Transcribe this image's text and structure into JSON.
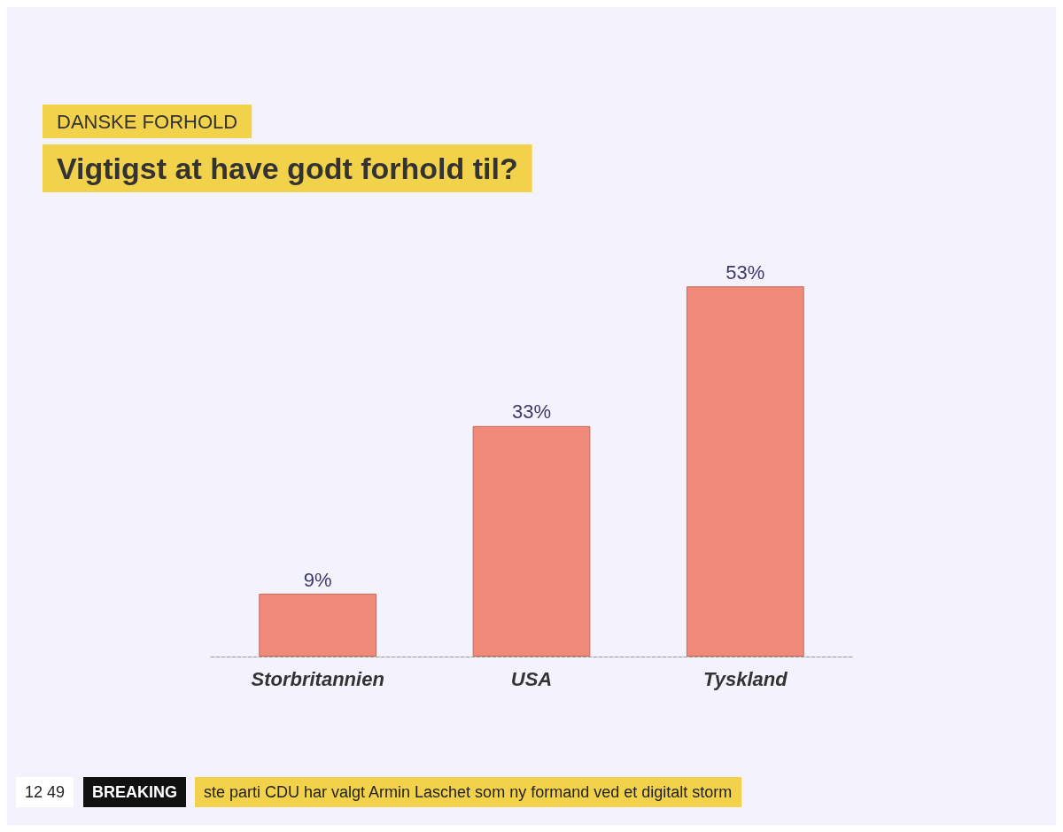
{
  "chart_data": {
    "type": "bar",
    "subtitle": "DANSKE FORHOLD",
    "title": "Vigtigst at have godt forhold til?",
    "categories": [
      "Storbritannien",
      "USA",
      "Tyskland"
    ],
    "values": [
      9,
      33,
      53
    ],
    "value_labels": [
      "9%",
      "33%",
      "53%"
    ],
    "color": "#f08a78",
    "annotations": [
      "12 49",
      "BREAKING",
      "ste parti CDU har valgt Armin Laschet som ny formand ved et digitalt storm"
    ]
  }
}
